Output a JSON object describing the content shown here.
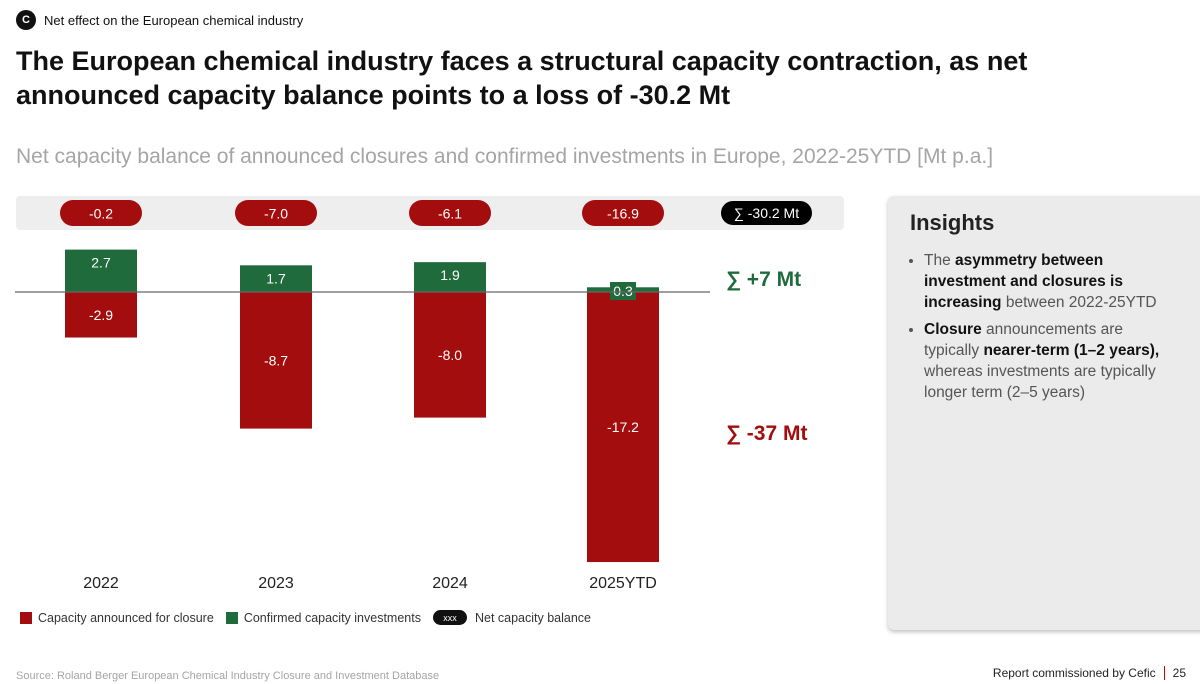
{
  "section": {
    "badge": "C",
    "label": "Net effect on the European chemical industry"
  },
  "headline": "The European chemical industry faces a structural capacity contraction, as net announced capacity balance points to a loss of -30.2 Mt",
  "chart_data": {
    "type": "bar",
    "title": "Net capacity balance of announced closures and confirmed investments in Europe, 2022-25YTD [Mt p.a.]",
    "categories": [
      "2022",
      "2023",
      "2024",
      "2025YTD"
    ],
    "series": [
      {
        "name": "Confirmed capacity investments",
        "color": "#1f6b3c",
        "values": [
          2.7,
          1.7,
          1.9,
          0.3
        ],
        "labels": [
          "2.7",
          "1.7",
          "1.9",
          "0.3"
        ]
      },
      {
        "name": "Capacity announced for closure",
        "color": "#a30d0d",
        "values": [
          -2.9,
          -8.7,
          -8.0,
          -17.2
        ],
        "labels": [
          "-2.9",
          "-8.7",
          "-8.0",
          "-17.2"
        ]
      }
    ],
    "net_balance": {
      "name": "Net capacity balance",
      "values": [
        -0.2,
        -7.0,
        -6.1,
        -16.9
      ],
      "labels": [
        "-0.2",
        "-7.0",
        "-6.1",
        "-16.9"
      ],
      "total_label": "∑ -30.2 Mt"
    },
    "sums": {
      "investments": "∑ +7 Mt",
      "closures": "∑ -37 Mt"
    },
    "ylim": [
      -17.2,
      2.7
    ]
  },
  "legend": {
    "closure": "Capacity announced for closure",
    "investment": "Confirmed capacity investments",
    "net_pill": "xxx",
    "net": "Net capacity balance"
  },
  "insights": {
    "title": "Insights",
    "b1": {
      "pre": "The ",
      "bold": "asymmetry between investment and closures is increasing",
      "post": " between 2022-25YTD"
    },
    "b2": {
      "bold1": "Closure",
      "mid1": " announcements are typically ",
      "bold2": "nearer-term (1–2 years),",
      "post": " whereas investments are typically longer term (2–5 years)"
    }
  },
  "source": "Source: Roland Berger European Chemical Industry Closure and Investment Database",
  "footer": {
    "text": "Report commissioned by Cefic",
    "page": "25"
  },
  "colors": {
    "closure": "#a30d0d",
    "investment": "#1f6b3c",
    "net_pill": "#a30d0d",
    "total_pill": "#000000"
  }
}
